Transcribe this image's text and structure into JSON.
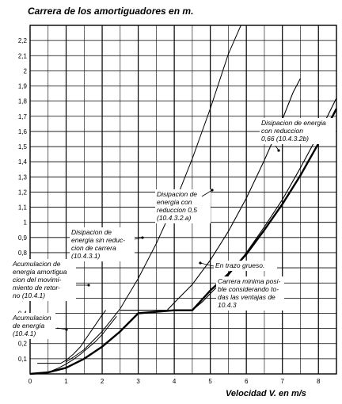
{
  "chart_data": {
    "type": "line",
    "title": "Carrera de los amortiguadores en m.",
    "xlabel": "Velocidad V. en m/s",
    "ylabel": "",
    "xlim": [
      0,
      8.5
    ],
    "ylim": [
      0,
      2.3
    ],
    "x_ticks": [
      0,
      1,
      2,
      3,
      4,
      5,
      6,
      7,
      8
    ],
    "x_tick_labels": [
      "0",
      "1",
      "2",
      "3",
      "4",
      "5",
      "6",
      "7",
      "8"
    ],
    "y_ticks": [
      0.1,
      0.2,
      0.3,
      0.4,
      0.5,
      0.6,
      0.7,
      0.8,
      0.9,
      1,
      1.1,
      1.2,
      1.3,
      1.4,
      1.5,
      1.6,
      1.7,
      1.8,
      1.9,
      2,
      2.1,
      2.2
    ],
    "y_tick_labels": [
      "0,1",
      "0,2",
      "0,3",
      "0,4",
      "0,5",
      "0,6",
      "0,7",
      "0,8",
      "0,9",
      "1",
      "1,1",
      "1,2",
      "1,3",
      "1,4",
      "1,5",
      "1,6",
      "1,7",
      "1,8",
      "1,9",
      "2",
      "2,1",
      "2,2"
    ],
    "grid": true,
    "series": [
      {
        "name": "Acumulacion de energia (10.4.1)",
        "points": [
          [
            0.6,
            0.02
          ],
          [
            0.8,
            0.04
          ],
          [
            1.0,
            0.065
          ],
          [
            1.2,
            0.095
          ],
          [
            1.4,
            0.13
          ],
          [
            1.6,
            0.17
          ],
          [
            1.8,
            0.21
          ],
          [
            2.0,
            0.26
          ],
          [
            2.2,
            0.32
          ],
          [
            2.4,
            0.38
          ]
        ]
      },
      {
        "name": "Acumulacion de energia amortiguacion del movimiento de retorno (10.4.1)",
        "points": [
          [
            0.2,
            0.07
          ],
          [
            0.85,
            0.07
          ],
          [
            1.0,
            0.09
          ],
          [
            1.2,
            0.13
          ],
          [
            1.4,
            0.18
          ],
          [
            1.6,
            0.25
          ],
          [
            1.8,
            0.32
          ],
          [
            2.0,
            0.39
          ],
          [
            2.1,
            0.42
          ]
        ]
      },
      {
        "name": "Disipacion de energia sin reduccion de carrera (10.4.3.1)",
        "points": [
          [
            1.0,
            0.08
          ],
          [
            1.2,
            0.11
          ],
          [
            1.5,
            0.16
          ],
          [
            2.0,
            0.28
          ],
          [
            2.5,
            0.43
          ],
          [
            3.0,
            0.63
          ],
          [
            3.5,
            0.86
          ],
          [
            4.0,
            1.12
          ],
          [
            4.5,
            1.42
          ],
          [
            5.0,
            1.75
          ],
          [
            5.5,
            2.11
          ],
          [
            5.85,
            2.39
          ]
        ]
      },
      {
        "name": "Disipacion de energia con reduccion 0,5 (10.4.3.2.a)",
        "points": [
          [
            2.5,
            0.42
          ],
          [
            3.8,
            0.42
          ],
          [
            4.0,
            0.47
          ],
          [
            4.5,
            0.59
          ],
          [
            5.0,
            0.75
          ],
          [
            5.5,
            0.94
          ],
          [
            6.0,
            1.16
          ],
          [
            6.5,
            1.41
          ],
          [
            7.0,
            1.68
          ],
          [
            7.3,
            1.86
          ],
          [
            7.5,
            1.95
          ]
        ]
      },
      {
        "name": "Disipacion de energia con reduccion 0,66 (10.4.3.2b)",
        "points": [
          [
            4.2,
            0.42
          ],
          [
            4.5,
            0.42
          ],
          [
            4.8,
            0.48
          ],
          [
            5.0,
            0.53
          ],
          [
            5.5,
            0.65
          ],
          [
            6.0,
            0.8
          ],
          [
            6.5,
            0.97
          ],
          [
            7.0,
            1.15
          ],
          [
            7.5,
            1.36
          ],
          [
            8.0,
            1.58
          ],
          [
            8.5,
            1.82
          ]
        ]
      },
      {
        "name": "Carrera minima posible considerando todas las ventajas de 10.4.3",
        "points": [
          [
            0,
            0.0
          ],
          [
            0.5,
            0.01
          ],
          [
            1.0,
            0.04
          ],
          [
            1.5,
            0.1
          ],
          [
            2.0,
            0.18
          ],
          [
            2.5,
            0.28
          ],
          [
            3.0,
            0.4
          ],
          [
            4.0,
            0.42
          ],
          [
            4.5,
            0.42
          ],
          [
            5.0,
            0.55
          ],
          [
            5.5,
            0.66
          ],
          [
            6.0,
            0.79
          ],
          [
            6.5,
            0.95
          ],
          [
            7.0,
            1.12
          ],
          [
            7.5,
            1.31
          ],
          [
            8.0,
            1.52
          ],
          [
            8.5,
            1.75
          ]
        ]
      }
    ],
    "annotations": {
      "dis_066": [
        "Disipacion de energia",
        "con      reduccion",
        "0,66   (10.4.3.2b)"
      ],
      "dis_05": [
        "Disipacion de",
        "energia con",
        "reduccion 0,5",
        "(10.4.3.2.a)"
      ],
      "dis_sin": [
        "Disipacion de",
        "energia sin reduc-",
        "cion de carrera",
        "(10.4.3.1)"
      ],
      "acum_amort": [
        "Acumulacion de",
        "energia amortigua",
        "cion del movimi-",
        "miento de retor-",
        "no (10.4.1)"
      ],
      "acum": [
        "Acumulacion",
        "de energia",
        "(10.4.1)"
      ],
      "trazo": [
        "En trazo grueso."
      ],
      "carrera_min": [
        "Carrera minima posi-",
        "ble considerando to-",
        "das las ventajas de",
        "10.4.3"
      ]
    }
  }
}
